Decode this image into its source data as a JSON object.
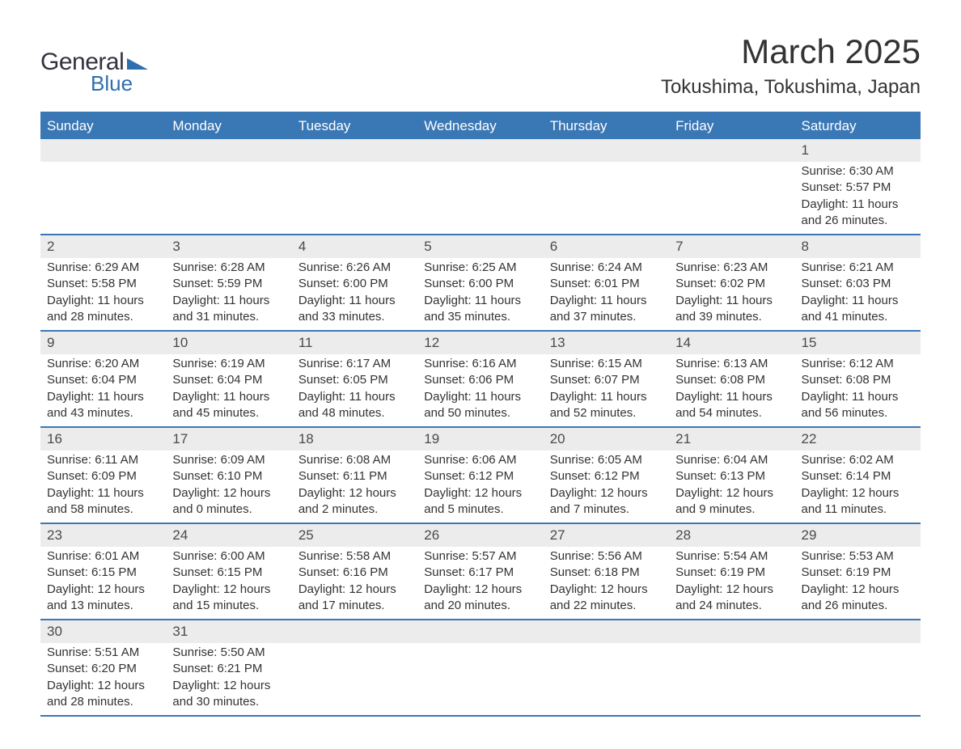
{
  "logo": {
    "general": "General",
    "blue": "Blue",
    "shape_color": "#2f6fb0"
  },
  "title": "March 2025",
  "location": "Tokushima, Tokushima, Japan",
  "colors": {
    "header_bg": "#3a77b5",
    "header_text": "#ffffff",
    "daynum_bg": "#ececec",
    "border": "#3a77b5",
    "text": "#333333"
  },
  "day_headers": [
    "Sunday",
    "Monday",
    "Tuesday",
    "Wednesday",
    "Thursday",
    "Friday",
    "Saturday"
  ],
  "weeks": [
    [
      null,
      null,
      null,
      null,
      null,
      null,
      {
        "n": "1",
        "sr": "6:30 AM",
        "ss": "5:57 PM",
        "dl": "11 hours and 26 minutes."
      }
    ],
    [
      {
        "n": "2",
        "sr": "6:29 AM",
        "ss": "5:58 PM",
        "dl": "11 hours and 28 minutes."
      },
      {
        "n": "3",
        "sr": "6:28 AM",
        "ss": "5:59 PM",
        "dl": "11 hours and 31 minutes."
      },
      {
        "n": "4",
        "sr": "6:26 AM",
        "ss": "6:00 PM",
        "dl": "11 hours and 33 minutes."
      },
      {
        "n": "5",
        "sr": "6:25 AM",
        "ss": "6:00 PM",
        "dl": "11 hours and 35 minutes."
      },
      {
        "n": "6",
        "sr": "6:24 AM",
        "ss": "6:01 PM",
        "dl": "11 hours and 37 minutes."
      },
      {
        "n": "7",
        "sr": "6:23 AM",
        "ss": "6:02 PM",
        "dl": "11 hours and 39 minutes."
      },
      {
        "n": "8",
        "sr": "6:21 AM",
        "ss": "6:03 PM",
        "dl": "11 hours and 41 minutes."
      }
    ],
    [
      {
        "n": "9",
        "sr": "6:20 AM",
        "ss": "6:04 PM",
        "dl": "11 hours and 43 minutes."
      },
      {
        "n": "10",
        "sr": "6:19 AM",
        "ss": "6:04 PM",
        "dl": "11 hours and 45 minutes."
      },
      {
        "n": "11",
        "sr": "6:17 AM",
        "ss": "6:05 PM",
        "dl": "11 hours and 48 minutes."
      },
      {
        "n": "12",
        "sr": "6:16 AM",
        "ss": "6:06 PM",
        "dl": "11 hours and 50 minutes."
      },
      {
        "n": "13",
        "sr": "6:15 AM",
        "ss": "6:07 PM",
        "dl": "11 hours and 52 minutes."
      },
      {
        "n": "14",
        "sr": "6:13 AM",
        "ss": "6:08 PM",
        "dl": "11 hours and 54 minutes."
      },
      {
        "n": "15",
        "sr": "6:12 AM",
        "ss": "6:08 PM",
        "dl": "11 hours and 56 minutes."
      }
    ],
    [
      {
        "n": "16",
        "sr": "6:11 AM",
        "ss": "6:09 PM",
        "dl": "11 hours and 58 minutes."
      },
      {
        "n": "17",
        "sr": "6:09 AM",
        "ss": "6:10 PM",
        "dl": "12 hours and 0 minutes."
      },
      {
        "n": "18",
        "sr": "6:08 AM",
        "ss": "6:11 PM",
        "dl": "12 hours and 2 minutes."
      },
      {
        "n": "19",
        "sr": "6:06 AM",
        "ss": "6:12 PM",
        "dl": "12 hours and 5 minutes."
      },
      {
        "n": "20",
        "sr": "6:05 AM",
        "ss": "6:12 PM",
        "dl": "12 hours and 7 minutes."
      },
      {
        "n": "21",
        "sr": "6:04 AM",
        "ss": "6:13 PM",
        "dl": "12 hours and 9 minutes."
      },
      {
        "n": "22",
        "sr": "6:02 AM",
        "ss": "6:14 PM",
        "dl": "12 hours and 11 minutes."
      }
    ],
    [
      {
        "n": "23",
        "sr": "6:01 AM",
        "ss": "6:15 PM",
        "dl": "12 hours and 13 minutes."
      },
      {
        "n": "24",
        "sr": "6:00 AM",
        "ss": "6:15 PM",
        "dl": "12 hours and 15 minutes."
      },
      {
        "n": "25",
        "sr": "5:58 AM",
        "ss": "6:16 PM",
        "dl": "12 hours and 17 minutes."
      },
      {
        "n": "26",
        "sr": "5:57 AM",
        "ss": "6:17 PM",
        "dl": "12 hours and 20 minutes."
      },
      {
        "n": "27",
        "sr": "5:56 AM",
        "ss": "6:18 PM",
        "dl": "12 hours and 22 minutes."
      },
      {
        "n": "28",
        "sr": "5:54 AM",
        "ss": "6:19 PM",
        "dl": "12 hours and 24 minutes."
      },
      {
        "n": "29",
        "sr": "5:53 AM",
        "ss": "6:19 PM",
        "dl": "12 hours and 26 minutes."
      }
    ],
    [
      {
        "n": "30",
        "sr": "5:51 AM",
        "ss": "6:20 PM",
        "dl": "12 hours and 28 minutes."
      },
      {
        "n": "31",
        "sr": "5:50 AM",
        "ss": "6:21 PM",
        "dl": "12 hours and 30 minutes."
      },
      null,
      null,
      null,
      null,
      null
    ]
  ],
  "labels": {
    "sunrise": "Sunrise:",
    "sunset": "Sunset:",
    "daylight": "Daylight:"
  }
}
